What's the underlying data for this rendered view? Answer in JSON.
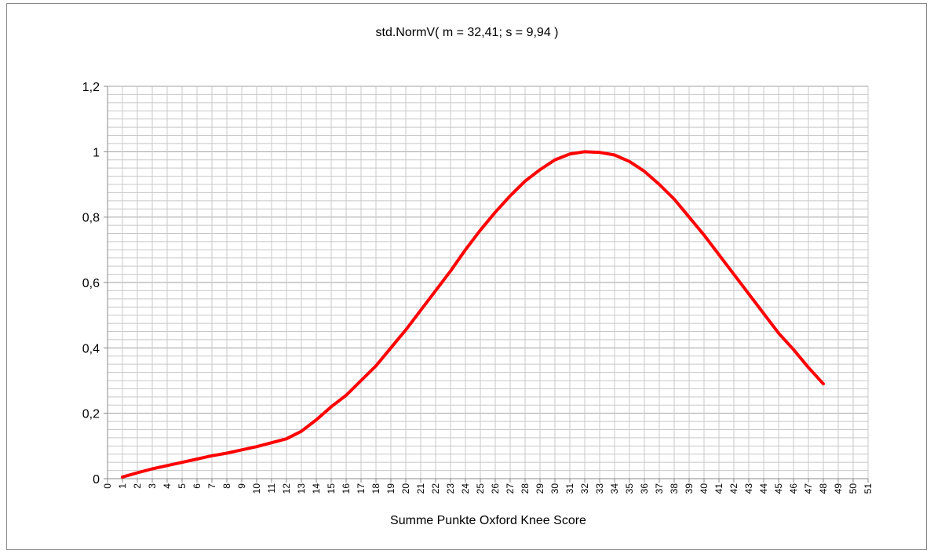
{
  "chart_data": {
    "type": "line",
    "title": "std.NormV( m = 32,41; s = 9,94 )",
    "x_label": "Summe Punkte Oxford Knee Score",
    "x": [
      1,
      2,
      3,
      4,
      5,
      6,
      7,
      8,
      9,
      10,
      11,
      12,
      13,
      14,
      15,
      16,
      17,
      18,
      19,
      20,
      21,
      22,
      23,
      24,
      25,
      26,
      27,
      28,
      29,
      30,
      31,
      32,
      33,
      34,
      35,
      36,
      37,
      38,
      39,
      40,
      41,
      42,
      43,
      44,
      45,
      46,
      47,
      48
    ],
    "series": [
      {
        "color": "#ff0000",
        "values": [
          0.005,
          0.018,
          0.03,
          0.04,
          0.05,
          0.06,
          0.07,
          0.078,
          0.088,
          0.098,
          0.11,
          0.122,
          0.145,
          0.18,
          0.22,
          0.255,
          0.3,
          0.345,
          0.4,
          0.455,
          0.515,
          0.575,
          0.635,
          0.7,
          0.76,
          0.815,
          0.865,
          0.91,
          0.945,
          0.975,
          0.993,
          1.0,
          0.998,
          0.99,
          0.97,
          0.94,
          0.9,
          0.855,
          0.8,
          0.745,
          0.685,
          0.625,
          0.565,
          0.505,
          0.445,
          0.395,
          0.34,
          0.29
        ]
      }
    ],
    "xlim": [
      0,
      51
    ],
    "xticks": [
      0,
      1,
      2,
      3,
      4,
      5,
      6,
      7,
      8,
      9,
      10,
      11,
      12,
      13,
      14,
      15,
      16,
      17,
      18,
      19,
      20,
      21,
      22,
      23,
      24,
      25,
      26,
      27,
      28,
      29,
      30,
      31,
      32,
      33,
      34,
      35,
      36,
      37,
      38,
      39,
      40,
      41,
      42,
      43,
      44,
      45,
      46,
      47,
      48,
      49,
      50,
      51
    ],
    "ylim": [
      0,
      1.2
    ],
    "yticks": [
      0,
      {
        "value": 0.2,
        "label": "0,2"
      },
      {
        "value": 0.4,
        "label": "0,4"
      },
      {
        "value": 0.6,
        "label": "0,6"
      },
      {
        "value": 0.8,
        "label": "0,8"
      },
      1,
      {
        "value": 1.2,
        "label": "1,2"
      }
    ],
    "grid": true
  }
}
